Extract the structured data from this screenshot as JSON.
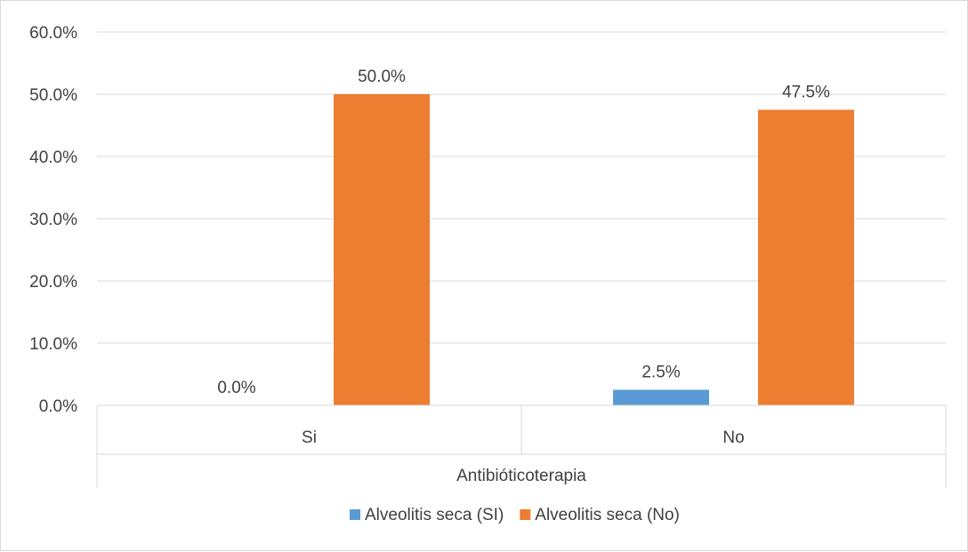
{
  "chart_data": {
    "type": "bar",
    "categories": [
      "Si",
      "No"
    ],
    "xlabel": "Antibióticoterapia",
    "ylim": [
      0,
      60
    ],
    "yticks": [
      0,
      10,
      20,
      30,
      40,
      50,
      60
    ],
    "ytick_labels": [
      "0.0%",
      "10.0%",
      "20.0%",
      "30.0%",
      "40.0%",
      "50.0%",
      "60.0%"
    ],
    "grid": true,
    "legend_position": "bottom",
    "series": [
      {
        "name": "Alveolitis seca (SI)",
        "color": "#5b9bd5",
        "values": [
          0.0,
          2.5
        ],
        "labels": [
          "0.0%",
          "2.5%"
        ]
      },
      {
        "name": "Alveolitis seca (No)",
        "color": "#ed7d31",
        "values": [
          50.0,
          47.5
        ],
        "labels": [
          "50.0%",
          "47.5%"
        ]
      }
    ]
  }
}
